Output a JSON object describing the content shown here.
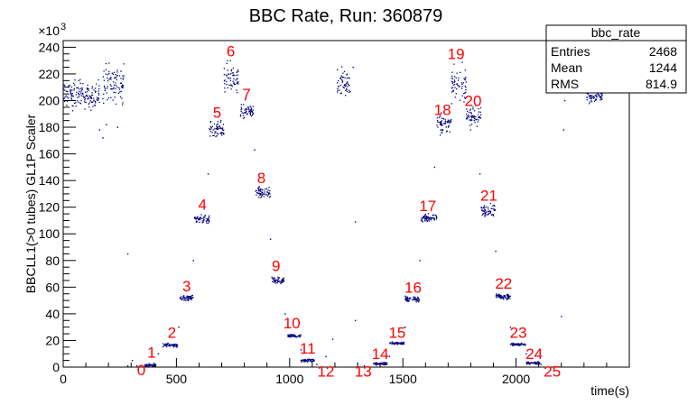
{
  "chart_data": {
    "type": "scatter",
    "title": "BBC Rate, Run: 360879",
    "xlabel": "time(s)",
    "ylabel": "BBCLL1(>0 tubes) GL1P Scaler",
    "y_exponent_label": "×10",
    "y_exponent_power": "3",
    "xlim": [
      0,
      2500
    ],
    "ylim": [
      0,
      245
    ],
    "x_ticks": [
      0,
      500,
      1000,
      1500,
      2000
    ],
    "y_ticks": [
      0,
      20,
      40,
      60,
      80,
      100,
      120,
      140,
      160,
      180,
      200,
      220,
      240
    ],
    "grid": false,
    "marker_color": "#000080",
    "annotation_color": "#ff0000",
    "stats": {
      "name": "bbc_rate",
      "rows": [
        {
          "label": "Entries",
          "value": "2468"
        },
        {
          "label": "Mean",
          "value": "1244"
        },
        {
          "label": "RMS",
          "value": "814.9"
        }
      ]
    },
    "clusters": [
      {
        "x": [
          0,
          160
        ],
        "y": 204,
        "spread": 5
      },
      {
        "x": [
          175,
          270
        ],
        "y": 213,
        "spread": 7
      },
      {
        "x": [
          360,
          410
        ],
        "y": 1.5,
        "spread": 0.6
      },
      {
        "x": [
          440,
          505
        ],
        "y": 16.5,
        "spread": 0.6
      },
      {
        "x": [
          515,
          575
        ],
        "y": 52,
        "spread": 1
      },
      {
        "x": [
          580,
          645
        ],
        "y": 111,
        "spread": 1.5
      },
      {
        "x": [
          645,
          710
        ],
        "y": 178,
        "spread": 3
      },
      {
        "x": [
          710,
          775
        ],
        "y": 215,
        "spread": 6
      },
      {
        "x": [
          780,
          840
        ],
        "y": 193,
        "spread": 3
      },
      {
        "x": [
          850,
          915
        ],
        "y": 131,
        "spread": 2
      },
      {
        "x": [
          920,
          975
        ],
        "y": 65,
        "spread": 1
      },
      {
        "x": [
          990,
          1050
        ],
        "y": 23.5,
        "spread": 0.5
      },
      {
        "x": [
          1050,
          1110
        ],
        "y": 5,
        "spread": 0.5
      },
      {
        "x": [
          1210,
          1270
        ],
        "y": 214,
        "spread": 5
      },
      {
        "x": [
          1370,
          1430
        ],
        "y": 2.5,
        "spread": 0.6
      },
      {
        "x": [
          1440,
          1505
        ],
        "y": 18,
        "spread": 0.5
      },
      {
        "x": [
          1510,
          1575
        ],
        "y": 51,
        "spread": 1
      },
      {
        "x": [
          1580,
          1650
        ],
        "y": 112,
        "spread": 1.5
      },
      {
        "x": [
          1650,
          1715
        ],
        "y": 182,
        "spread": 3
      },
      {
        "x": [
          1715,
          1780
        ],
        "y": 212,
        "spread": 6
      },
      {
        "x": [
          1780,
          1845
        ],
        "y": 188,
        "spread": 4
      },
      {
        "x": [
          1845,
          1910
        ],
        "y": 118,
        "spread": 2
      },
      {
        "x": [
          1910,
          1975
        ],
        "y": 53,
        "spread": 1
      },
      {
        "x": [
          1975,
          2045
        ],
        "y": 17,
        "spread": 0.5
      },
      {
        "x": [
          2045,
          2105
        ],
        "y": 3,
        "spread": 0.5
      },
      {
        "x": [
          2310,
          2380
        ],
        "y": 203,
        "spread": 2
      }
    ],
    "stray_points": [
      {
        "x": 160,
        "y": 178
      },
      {
        "x": 175,
        "y": 172
      },
      {
        "x": 190,
        "y": 182
      },
      {
        "x": 240,
        "y": 180
      },
      {
        "x": 255,
        "y": 222
      },
      {
        "x": 285,
        "y": 85
      },
      {
        "x": 285,
        "y": 1
      },
      {
        "x": 305,
        "y": 5
      },
      {
        "x": 325,
        "y": 1
      },
      {
        "x": 420,
        "y": 10
      },
      {
        "x": 510,
        "y": 30
      },
      {
        "x": 575,
        "y": 80
      },
      {
        "x": 640,
        "y": 145
      },
      {
        "x": 845,
        "y": 163
      },
      {
        "x": 915,
        "y": 96
      },
      {
        "x": 980,
        "y": 40
      },
      {
        "x": 1050,
        "y": 13
      },
      {
        "x": 1120,
        "y": 2
      },
      {
        "x": 1190,
        "y": 21
      },
      {
        "x": 1160,
        "y": 8
      },
      {
        "x": 1280,
        "y": 225
      },
      {
        "x": 1290,
        "y": 109
      },
      {
        "x": 1290,
        "y": 35
      },
      {
        "x": 1300,
        "y": 3
      },
      {
        "x": 1330,
        "y": 1
      },
      {
        "x": 1440,
        "y": 8
      },
      {
        "x": 1510,
        "y": 30
      },
      {
        "x": 1575,
        "y": 80
      },
      {
        "x": 1640,
        "y": 150
      },
      {
        "x": 1840,
        "y": 145
      },
      {
        "x": 1910,
        "y": 87
      },
      {
        "x": 1975,
        "y": 30
      },
      {
        "x": 2045,
        "y": 10
      },
      {
        "x": 2110,
        "y": 2
      },
      {
        "x": 2200,
        "y": 38
      },
      {
        "x": 2210,
        "y": 178
      },
      {
        "x": 2215,
        "y": 200
      },
      {
        "x": 2230,
        "y": 206
      }
    ],
    "annotations": [
      {
        "text": "0",
        "x": 345,
        "y": -6
      },
      {
        "text": "1",
        "x": 390,
        "y": 7
      },
      {
        "text": "2",
        "x": 480,
        "y": 22
      },
      {
        "text": "3",
        "x": 545,
        "y": 57
      },
      {
        "text": "4",
        "x": 615,
        "y": 118
      },
      {
        "text": "5",
        "x": 680,
        "y": 187
      },
      {
        "text": "6",
        "x": 740,
        "y": 233
      },
      {
        "text": "7",
        "x": 810,
        "y": 201
      },
      {
        "text": "8",
        "x": 875,
        "y": 138
      },
      {
        "text": "9",
        "x": 940,
        "y": 72
      },
      {
        "text": "10",
        "x": 1010,
        "y": 29
      },
      {
        "text": "11",
        "x": 1080,
        "y": 10
      },
      {
        "text": "12",
        "x": 1160,
        "y": -7
      },
      {
        "text": "13",
        "x": 1325,
        "y": -7
      },
      {
        "text": "14",
        "x": 1400,
        "y": 6
      },
      {
        "text": "15",
        "x": 1475,
        "y": 22
      },
      {
        "text": "16",
        "x": 1545,
        "y": 56
      },
      {
        "text": "17",
        "x": 1610,
        "y": 117
      },
      {
        "text": "18",
        "x": 1675,
        "y": 189
      },
      {
        "text": "19",
        "x": 1735,
        "y": 231
      },
      {
        "text": "20",
        "x": 1810,
        "y": 196
      },
      {
        "text": "21",
        "x": 1880,
        "y": 125
      },
      {
        "text": "22",
        "x": 1945,
        "y": 59
      },
      {
        "text": "23",
        "x": 2010,
        "y": 22
      },
      {
        "text": "24",
        "x": 2080,
        "y": 6
      },
      {
        "text": "25",
        "x": 2160,
        "y": -7
      }
    ]
  }
}
